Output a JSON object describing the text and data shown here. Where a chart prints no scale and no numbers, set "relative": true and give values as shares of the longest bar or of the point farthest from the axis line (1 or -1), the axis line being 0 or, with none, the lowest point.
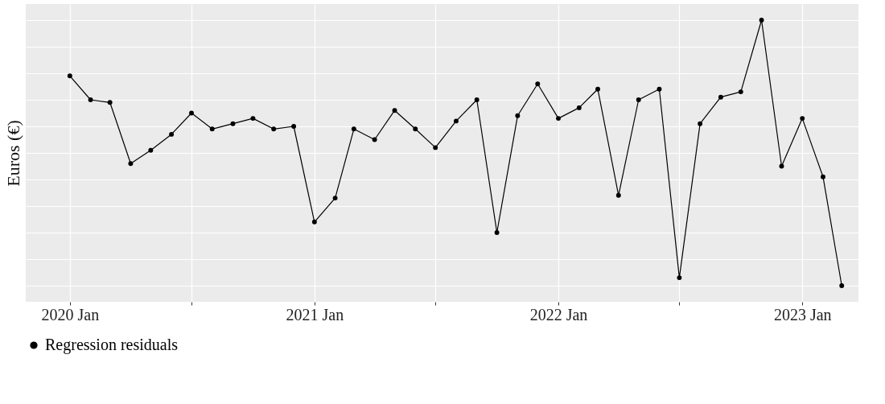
{
  "chart_data": {
    "type": "line",
    "ylabel": "Euros (€)",
    "relative": true,
    "grid": true,
    "legend": "bottom",
    "marker": "circle",
    "line_style": "solid",
    "x": [
      "2020-01",
      "2020-02",
      "2020-03",
      "2020-04",
      "2020-05",
      "2020-06",
      "2020-07",
      "2020-08",
      "2020-09",
      "2020-10",
      "2020-11",
      "2020-12",
      "2021-01",
      "2021-02",
      "2021-03",
      "2021-04",
      "2021-05",
      "2021-06",
      "2021-07",
      "2021-08",
      "2021-09",
      "2021-10",
      "2021-11",
      "2021-12",
      "2022-01",
      "2022-02",
      "2022-03",
      "2022-04",
      "2022-05",
      "2022-06",
      "2022-07",
      "2022-08",
      "2022-09",
      "2022-10",
      "2022-11",
      "2022-12",
      "2023-01",
      "2023-02",
      "2023-03"
    ],
    "xlim": [
      "2019-10-27",
      "2023-03-26"
    ],
    "xticks": [
      {
        "value": "2020-01",
        "label": "2020 Jan"
      },
      {
        "value": "2020-07",
        "label": null
      },
      {
        "value": "2021-01",
        "label": "2021 Jan"
      },
      {
        "value": "2021-07",
        "label": null
      },
      {
        "value": "2022-01",
        "label": "2022 Jan"
      },
      {
        "value": "2022-07",
        "label": null
      },
      {
        "value": "2023-01",
        "label": "2023 Jan"
      }
    ],
    "series": [
      {
        "name": "Regression residuals",
        "color": "#000000",
        "values": [
          0.79,
          0.7,
          0.69,
          0.46,
          0.51,
          0.57,
          0.65,
          0.59,
          0.61,
          0.63,
          0.59,
          0.6,
          0.24,
          0.33,
          0.59,
          0.55,
          0.66,
          0.59,
          0.52,
          0.62,
          0.7,
          0.2,
          0.64,
          0.76,
          0.63,
          0.67,
          0.74,
          0.34,
          0.7,
          0.74,
          0.03,
          0.61,
          0.71,
          0.73,
          1,
          0.45,
          0.63,
          0.41,
          0
        ]
      }
    ]
  }
}
